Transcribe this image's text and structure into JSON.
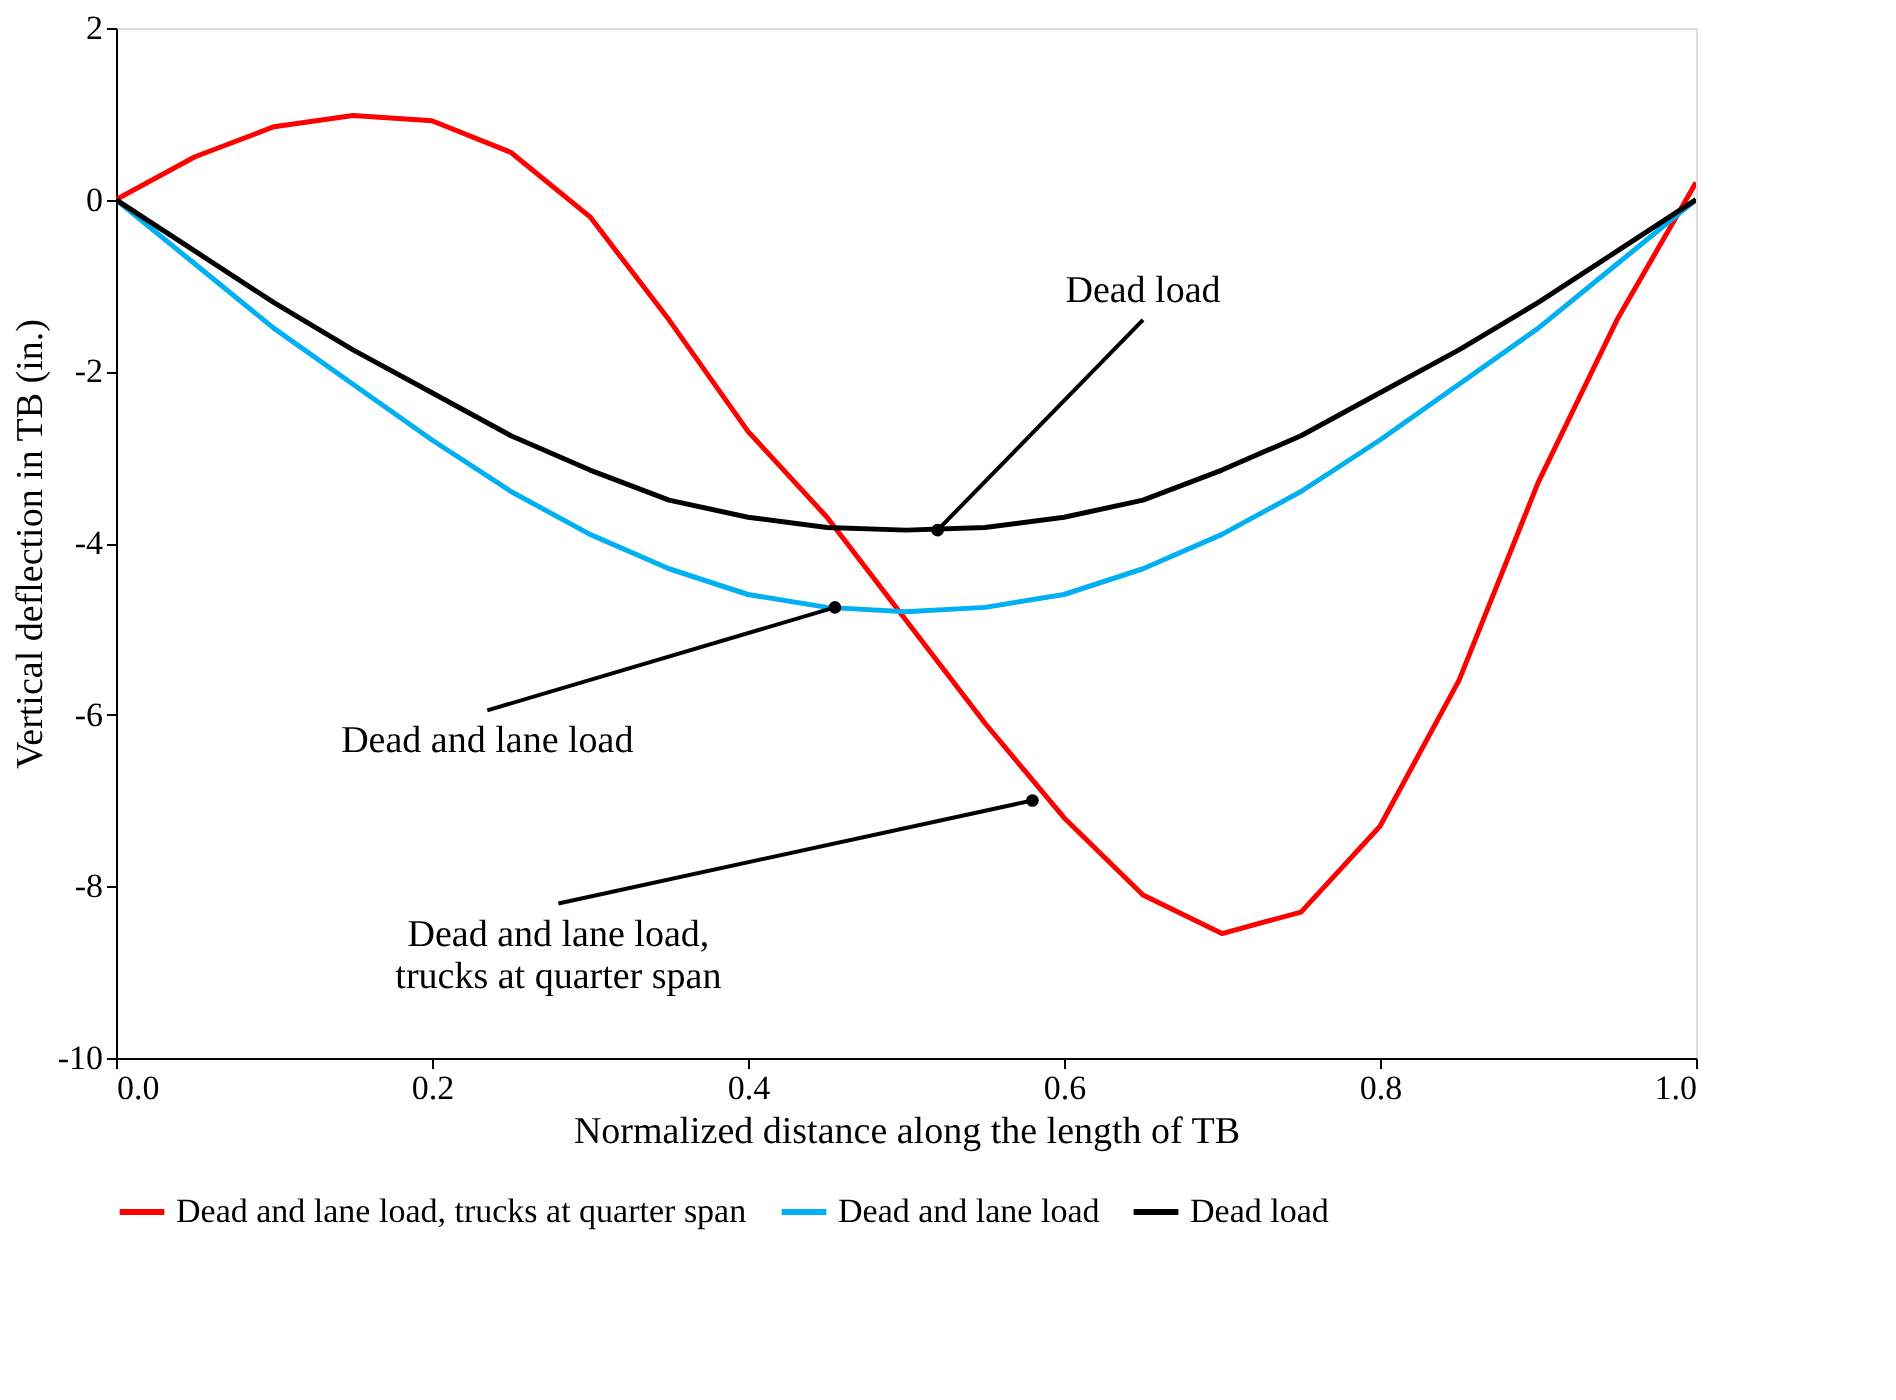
{
  "chart_data": {
    "type": "line",
    "xlabel": "Normalized distance along the length of TB",
    "ylabel": "Vertical  deflection in TB (in.)",
    "x": [
      0,
      0.05,
      0.1,
      0.15,
      0.2,
      0.25,
      0.3,
      0.35,
      0.4,
      0.45,
      0.5,
      0.55,
      0.6,
      0.65,
      0.7,
      0.75,
      0.8,
      0.85,
      0.9,
      0.95,
      1.0
    ],
    "series": [
      {
        "name": "Dead and lane load, trucks at quarter span",
        "color": "#ff0000",
        "values": [
          0,
          0.5,
          0.85,
          0.98,
          0.92,
          0.55,
          -0.2,
          -1.4,
          -2.7,
          -3.7,
          -4.9,
          -6.1,
          -7.2,
          -8.1,
          -8.55,
          -8.3,
          -7.3,
          -5.6,
          -3.3,
          -1.4,
          0.2
        ]
      },
      {
        "name": "Dead and lane load",
        "color": "#00b0f0",
        "values": [
          0,
          -0.75,
          -1.5,
          -2.15,
          -2.8,
          -3.4,
          -3.9,
          -4.3,
          -4.6,
          -4.75,
          -4.8,
          -4.75,
          -4.6,
          -4.3,
          -3.9,
          -3.4,
          -2.8,
          -2.15,
          -1.5,
          -0.75,
          0
        ]
      },
      {
        "name": "Dead load",
        "color": "#000000",
        "values": [
          0,
          -0.6,
          -1.2,
          -1.75,
          -2.25,
          -2.75,
          -3.15,
          -3.5,
          -3.7,
          -3.82,
          -3.85,
          -3.82,
          -3.7,
          -3.5,
          -3.15,
          -2.75,
          -2.25,
          -1.75,
          -1.2,
          -0.6,
          0
        ]
      }
    ],
    "xlim": [
      0,
      1
    ],
    "xticks": [
      {
        "value": 0,
        "label": "0.0"
      },
      0.2,
      0.4,
      0.6,
      0.8,
      {
        "value": 1,
        "label": "1.0"
      }
    ],
    "ylim": [
      -10,
      2
    ],
    "yticks": [
      -10,
      -8,
      -6,
      -4,
      -2,
      0,
      2
    ],
    "annotations": [
      {
        "text": "Dead load",
        "x": 0.52,
        "y": -3.85
      },
      {
        "text": "Dead and lane load",
        "x": 0.455,
        "y": -4.75
      },
      {
        "text": "Dead and lane load,\ntrucks at quarter span",
        "x": 0.58,
        "y": -7.0
      }
    ],
    "grid": false,
    "legend": "bottom",
    "marker": "none",
    "line_style": "solid"
  }
}
